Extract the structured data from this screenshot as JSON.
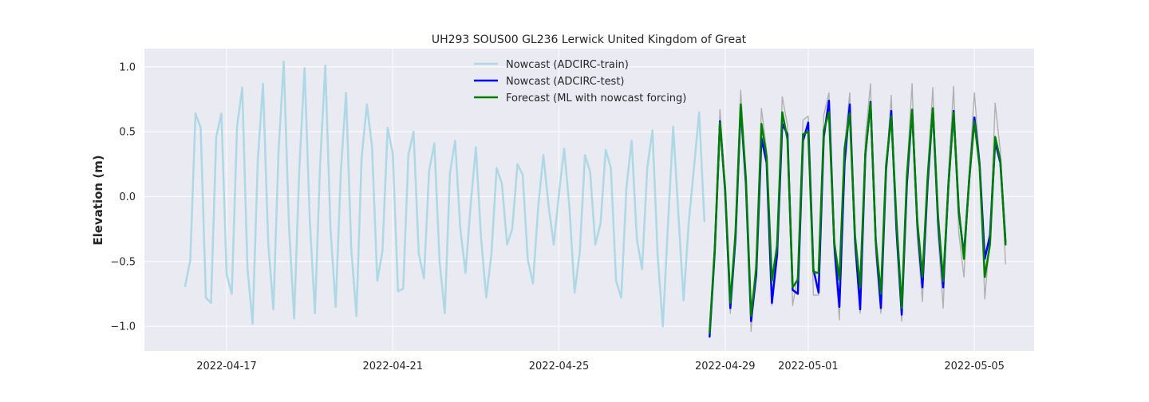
{
  "chart_data": {
    "type": "line",
    "title": "UH293 SOUS00 GL236 Lerwick United Kingdom of Great",
    "xlabel": "",
    "ylabel": "Elevation (m)",
    "xlim": [
      "2022-04-15T00:30",
      "2022-05-06T10:30"
    ],
    "ylim": [
      -1.19,
      1.14
    ],
    "x_ticks": [
      "2022-04-17",
      "2022-04-21",
      "2022-04-25",
      "2022-04-29",
      "2022-05-01",
      "2022-05-05"
    ],
    "y_ticks": [
      1.0,
      0.5,
      0.0,
      -0.5,
      -1.0
    ],
    "y_tick_labels": [
      "1.0",
      "0.5",
      "0.0",
      "−0.5",
      "−1.0"
    ],
    "grid": true,
    "legend_position": "top-center",
    "colors": {
      "background": "#eaeaf2",
      "grid": "#ffffff",
      "train": "#add8e6",
      "test": "#0000ff",
      "forecast": "#008000",
      "reference": "#b0b0b0"
    },
    "series": [
      {
        "name": "Nowcast (ADCIRC-train)",
        "color": "#add8e6",
        "start": "2022-04-16T00:00",
        "step_hours": 3,
        "values": [
          -0.69,
          -0.49,
          0.64,
          0.53,
          -0.78,
          -0.82,
          0.46,
          0.64,
          -0.6,
          -0.75,
          0.54,
          0.84,
          -0.55,
          -0.98,
          0.28,
          0.87,
          -0.35,
          -0.87,
          0.35,
          1.04,
          -0.22,
          -0.94,
          0.21,
          0.99,
          -0.18,
          -0.9,
          0.25,
          1.01,
          -0.25,
          -0.85,
          0.2,
          0.8,
          -0.4,
          -0.92,
          0.3,
          0.71,
          0.38,
          -0.65,
          -0.42,
          0.53,
          0.33,
          -0.73,
          -0.71,
          0.32,
          0.5,
          -0.44,
          -0.63,
          0.2,
          0.41,
          -0.5,
          -0.9,
          0.18,
          0.43,
          -0.25,
          -0.59,
          -0.06,
          0.38,
          -0.32,
          -0.78,
          -0.44,
          0.22,
          0.1,
          -0.37,
          -0.25,
          0.25,
          0.17,
          -0.49,
          -0.67,
          -0.08,
          0.32,
          -0.07,
          -0.37,
          0.02,
          0.37,
          -0.08,
          -0.74,
          -0.43,
          0.32,
          0.19,
          -0.37,
          -0.21,
          0.36,
          0.22,
          -0.65,
          -0.78,
          0.07,
          0.43,
          -0.33,
          -0.56,
          0.22,
          0.51,
          -0.45,
          -1.0,
          -0.21,
          0.54,
          -0.14,
          -0.8,
          -0.2,
          0.22,
          0.65,
          -0.19
        ]
      },
      {
        "name": "Nowcast (ADCIRC-test)",
        "color": "#0000ff",
        "start": "2022-04-28T15:00",
        "step_hours": 3,
        "values": [
          -1.08,
          -0.42,
          0.58,
          0.04,
          -0.86,
          -0.32,
          0.69,
          0.1,
          -0.96,
          -0.6,
          0.45,
          0.26,
          -0.82,
          -0.45,
          0.56,
          0.48,
          -0.72,
          -0.75,
          0.43,
          0.57,
          -0.56,
          -0.74,
          0.46,
          0.74,
          -0.36,
          -0.85,
          0.26,
          0.71,
          -0.33,
          -0.87,
          0.32,
          0.73,
          -0.34,
          -0.86,
          0.21,
          0.66,
          -0.25,
          -0.91,
          0.1,
          0.67,
          -0.21,
          -0.7,
          0.1,
          0.68,
          -0.19,
          -0.7,
          0.09,
          0.66,
          -0.12,
          -0.45,
          0.13,
          0.61,
          0.25,
          -0.48,
          -0.3,
          0.42,
          0.26,
          -0.35
        ]
      },
      {
        "name": "Forecast (ML with nowcast forcing)",
        "color": "#008000",
        "start": "2022-04-28T15:00",
        "step_hours": 3,
        "values": [
          -1.05,
          -0.4,
          0.57,
          0.06,
          -0.82,
          -0.28,
          0.71,
          0.14,
          -0.92,
          -0.55,
          0.56,
          0.31,
          -0.65,
          -0.38,
          0.65,
          0.44,
          -0.7,
          -0.64,
          0.48,
          0.5,
          -0.58,
          -0.59,
          0.51,
          0.65,
          -0.35,
          -0.64,
          0.37,
          0.64,
          -0.3,
          -0.7,
          0.33,
          0.72,
          -0.33,
          -0.75,
          0.24,
          0.62,
          -0.18,
          -0.86,
          0.16,
          0.67,
          -0.19,
          -0.62,
          0.15,
          0.68,
          -0.15,
          -0.65,
          0.08,
          0.65,
          -0.1,
          -0.48,
          0.14,
          0.58,
          0.23,
          -0.62,
          -0.37,
          0.46,
          0.28,
          -0.37
        ]
      },
      {
        "color": "#b0b0b0",
        "start": "2022-04-28T15:00",
        "step_hours": 3,
        "values": [
          -1.02,
          -0.35,
          0.67,
          0.08,
          -0.9,
          -0.2,
          0.82,
          0.18,
          -1.04,
          -0.45,
          0.68,
          0.35,
          -0.84,
          -0.3,
          0.77,
          0.55,
          -0.84,
          -0.6,
          0.59,
          0.62,
          -0.76,
          -0.76,
          0.63,
          0.8,
          -0.45,
          -0.95,
          0.4,
          0.8,
          -0.4,
          -0.9,
          0.45,
          0.87,
          -0.45,
          -0.9,
          0.2,
          0.78,
          -0.32,
          -0.96,
          0.2,
          0.87,
          -0.32,
          -0.81,
          0.2,
          0.84,
          -0.3,
          -0.86,
          0.17,
          0.85,
          -0.28,
          -0.62,
          0.2,
          0.8,
          0.28,
          -0.79,
          -0.31,
          0.72,
          0.35,
          -0.52
        ]
      }
    ]
  }
}
